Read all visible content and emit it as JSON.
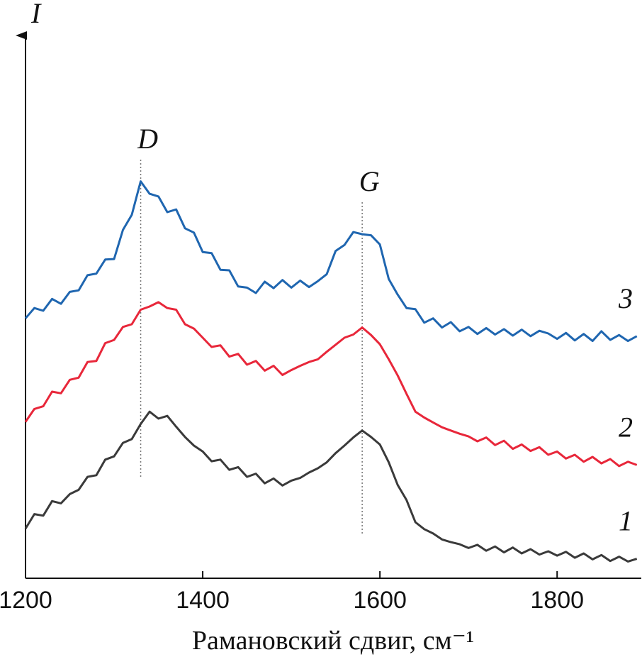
{
  "chart_data": {
    "type": "line",
    "ylabel": "I",
    "xlabel": "Рамановский сдвиг, см⁻¹",
    "xlim": [
      1200,
      1895
    ],
    "xticks": [
      1200,
      1400,
      1600,
      1800
    ],
    "ylim": [
      0,
      100
    ],
    "x": [
      1200,
      1210,
      1220,
      1230,
      1240,
      1250,
      1260,
      1270,
      1280,
      1290,
      1300,
      1310,
      1320,
      1330,
      1340,
      1350,
      1360,
      1370,
      1380,
      1390,
      1400,
      1410,
      1420,
      1430,
      1440,
      1450,
      1460,
      1470,
      1480,
      1490,
      1500,
      1510,
      1520,
      1530,
      1540,
      1550,
      1560,
      1570,
      1580,
      1590,
      1600,
      1610,
      1620,
      1630,
      1640,
      1650,
      1660,
      1670,
      1680,
      1690,
      1700,
      1710,
      1720,
      1730,
      1740,
      1750,
      1760,
      1770,
      1780,
      1790,
      1800,
      1810,
      1820,
      1830,
      1840,
      1850,
      1860,
      1870,
      1880,
      1890
    ],
    "series": [
      {
        "name": "1",
        "color": "#3a3a3a",
        "values": [
          9.2,
          11.9,
          11.6,
          14.3,
          13.9,
          15.6,
          16.4,
          18.8,
          19.1,
          22.0,
          22.6,
          25.1,
          25.8,
          28.6,
          30.9,
          29.6,
          30.1,
          28.1,
          26.2,
          24.6,
          23.5,
          21.7,
          22.0,
          20.1,
          20.6,
          18.8,
          19.4,
          17.6,
          18.5,
          17.2,
          18.1,
          18.6,
          19.6,
          20.4,
          21.5,
          23.2,
          24.6,
          26.1,
          27.4,
          26.2,
          24.8,
          21.5,
          17.3,
          14.5,
          10.4,
          9.1,
          8.3,
          7.2,
          6.7,
          6.3,
          5.6,
          6.2,
          5.1,
          5.9,
          4.8,
          5.7,
          4.6,
          5.4,
          4.4,
          5.0,
          4.2,
          4.9,
          3.8,
          4.6,
          3.5,
          4.3,
          3.2,
          4.0,
          3.1,
          3.6
        ]
      },
      {
        "name": "2",
        "color": "#e8273a",
        "values": [
          29.0,
          31.4,
          31.9,
          34.6,
          34.3,
          36.8,
          37.2,
          40.1,
          40.3,
          43.6,
          44.2,
          46.6,
          47.1,
          49.8,
          50.4,
          51.2,
          50.1,
          49.8,
          47.1,
          46.3,
          44.6,
          42.9,
          43.2,
          41.1,
          41.6,
          39.6,
          40.3,
          38.5,
          39.4,
          37.7,
          38.6,
          39.4,
          40.1,
          40.6,
          42.0,
          43.3,
          44.6,
          45.2,
          46.5,
          45.1,
          43.4,
          40.6,
          37.6,
          34.2,
          30.9,
          29.8,
          28.9,
          28.0,
          27.4,
          26.8,
          26.3,
          25.4,
          26.1,
          24.7,
          25.5,
          24.0,
          24.8,
          23.6,
          24.3,
          22.9,
          23.5,
          22.2,
          22.9,
          21.6,
          22.5,
          21.3,
          22.1,
          20.8,
          21.6,
          21.0
        ]
      },
      {
        "name": "3",
        "color": "#1f66b0",
        "values": [
          48.2,
          50.1,
          49.6,
          51.8,
          50.9,
          53.1,
          53.4,
          56.2,
          56.5,
          59.1,
          59.2,
          64.6,
          67.4,
          73.6,
          71.3,
          70.8,
          67.9,
          68.4,
          64.9,
          64.1,
          60.5,
          60.3,
          57.2,
          57.1,
          54.1,
          53.9,
          52.9,
          55.0,
          53.8,
          55.3,
          53.9,
          55.2,
          54.0,
          55.1,
          56.4,
          60.7,
          61.8,
          64.2,
          63.8,
          63.6,
          61.9,
          55.5,
          52.6,
          50.1,
          49.9,
          47.4,
          48.2,
          46.5,
          47.5,
          45.8,
          46.6,
          45.3,
          46.4,
          45.2,
          46.2,
          45.0,
          46.1,
          44.9,
          45.9,
          45.4,
          44.4,
          45.5,
          44.1,
          45.3,
          44.0,
          45.8,
          44.2,
          45.1,
          44.0,
          44.9
        ]
      }
    ],
    "annotations": [
      {
        "text": "D",
        "x": 1330
      },
      {
        "text": "G",
        "x": 1580
      }
    ]
  }
}
